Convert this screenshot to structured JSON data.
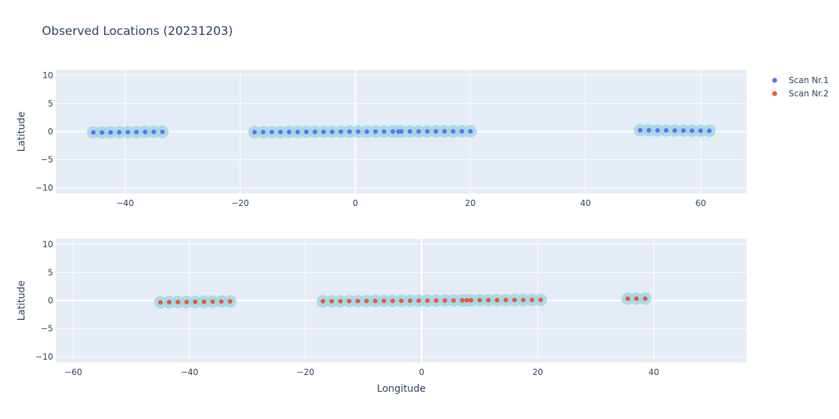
{
  "chart_data": {
    "type": "scatter",
    "title": "Observed Locations (20231203)",
    "legend": {
      "placement": "top-right",
      "entries": [
        {
          "name": "Scan Nr.1",
          "color": "#636efa"
        },
        {
          "name": "Scan Nr.2",
          "color": "#ef553b"
        }
      ]
    },
    "halo_color": "#9fd8e3",
    "grid": true,
    "subplots": [
      {
        "id": "top",
        "series_name": "Scan Nr.1",
        "color": "#636efa",
        "xlim": [
          -52,
          68
        ],
        "ylim": [
          -11,
          11
        ],
        "xticks": [
          -40,
          -20,
          0,
          20,
          40,
          60
        ],
        "yticks": [
          -10,
          -5,
          0,
          5,
          10
        ],
        "ylabel": "Latitude",
        "xlabel": "",
        "points": [
          [
            -45.5,
            -0.15
          ],
          [
            -44.0,
            -0.15
          ],
          [
            -42.5,
            -0.13
          ],
          [
            -41.0,
            -0.12
          ],
          [
            -39.5,
            -0.1
          ],
          [
            -38.0,
            -0.08
          ],
          [
            -36.5,
            -0.05
          ],
          [
            -35.0,
            -0.04
          ],
          [
            -33.5,
            -0.03
          ],
          [
            -17.5,
            -0.1
          ],
          [
            -16.0,
            -0.09
          ],
          [
            -14.5,
            -0.08
          ],
          [
            -13.0,
            -0.07
          ],
          [
            -11.5,
            -0.06
          ],
          [
            -10.0,
            -0.05
          ],
          [
            -8.5,
            -0.04
          ],
          [
            -7.0,
            -0.03
          ],
          [
            -5.5,
            -0.02
          ],
          [
            -4.0,
            -0.02
          ],
          [
            -2.5,
            -0.01
          ],
          [
            -1.0,
            0.0
          ],
          [
            0.5,
            0.0
          ],
          [
            2.0,
            0.0
          ],
          [
            3.5,
            0.01
          ],
          [
            5.0,
            0.01
          ],
          [
            6.5,
            0.02
          ],
          [
            7.5,
            0.02
          ],
          [
            8.0,
            0.02
          ],
          [
            9.5,
            0.03
          ],
          [
            11.0,
            0.03
          ],
          [
            12.5,
            0.04
          ],
          [
            14.0,
            0.04
          ],
          [
            15.5,
            0.05
          ],
          [
            17.0,
            0.05
          ],
          [
            18.5,
            0.06
          ],
          [
            20.0,
            0.06
          ],
          [
            49.5,
            0.25
          ],
          [
            51.0,
            0.24
          ],
          [
            52.5,
            0.23
          ],
          [
            54.0,
            0.22
          ],
          [
            55.5,
            0.2
          ],
          [
            57.0,
            0.19
          ],
          [
            58.5,
            0.17
          ],
          [
            60.0,
            0.16
          ],
          [
            61.5,
            0.14
          ]
        ]
      },
      {
        "id": "bottom",
        "series_name": "Scan Nr.2",
        "color": "#ef553b",
        "xlim": [
          -63,
          56
        ],
        "ylim": [
          -11,
          11
        ],
        "xticks": [
          -60,
          -40,
          -20,
          0,
          20,
          40
        ],
        "yticks": [
          -10,
          -5,
          0,
          5,
          10
        ],
        "ylabel": "Latitude",
        "xlabel": "Longitude",
        "points": [
          [
            -45.0,
            -0.3
          ],
          [
            -43.5,
            -0.28
          ],
          [
            -42.0,
            -0.26
          ],
          [
            -40.5,
            -0.24
          ],
          [
            -39.0,
            -0.22
          ],
          [
            -37.5,
            -0.2
          ],
          [
            -36.0,
            -0.18
          ],
          [
            -34.5,
            -0.16
          ],
          [
            -33.0,
            -0.14
          ],
          [
            -17.0,
            -0.12
          ],
          [
            -15.5,
            -0.11
          ],
          [
            -14.0,
            -0.1
          ],
          [
            -12.5,
            -0.09
          ],
          [
            -11.0,
            -0.08
          ],
          [
            -9.5,
            -0.07
          ],
          [
            -8.0,
            -0.06
          ],
          [
            -6.5,
            -0.05
          ],
          [
            -5.0,
            -0.04
          ],
          [
            -3.5,
            -0.03
          ],
          [
            -2.0,
            -0.02
          ],
          [
            -0.5,
            -0.01
          ],
          [
            1.0,
            0.0
          ],
          [
            2.5,
            0.01
          ],
          [
            4.0,
            0.02
          ],
          [
            5.5,
            0.03
          ],
          [
            7.0,
            0.04
          ],
          [
            7.8,
            0.05
          ],
          [
            8.5,
            0.06
          ],
          [
            10.0,
            0.07
          ],
          [
            11.5,
            0.08
          ],
          [
            13.0,
            0.09
          ],
          [
            14.5,
            0.1
          ],
          [
            16.0,
            0.11
          ],
          [
            17.5,
            0.12
          ],
          [
            19.0,
            0.13
          ],
          [
            20.5,
            0.14
          ],
          [
            35.5,
            0.35
          ],
          [
            37.0,
            0.36
          ],
          [
            38.5,
            0.37
          ]
        ]
      }
    ]
  }
}
